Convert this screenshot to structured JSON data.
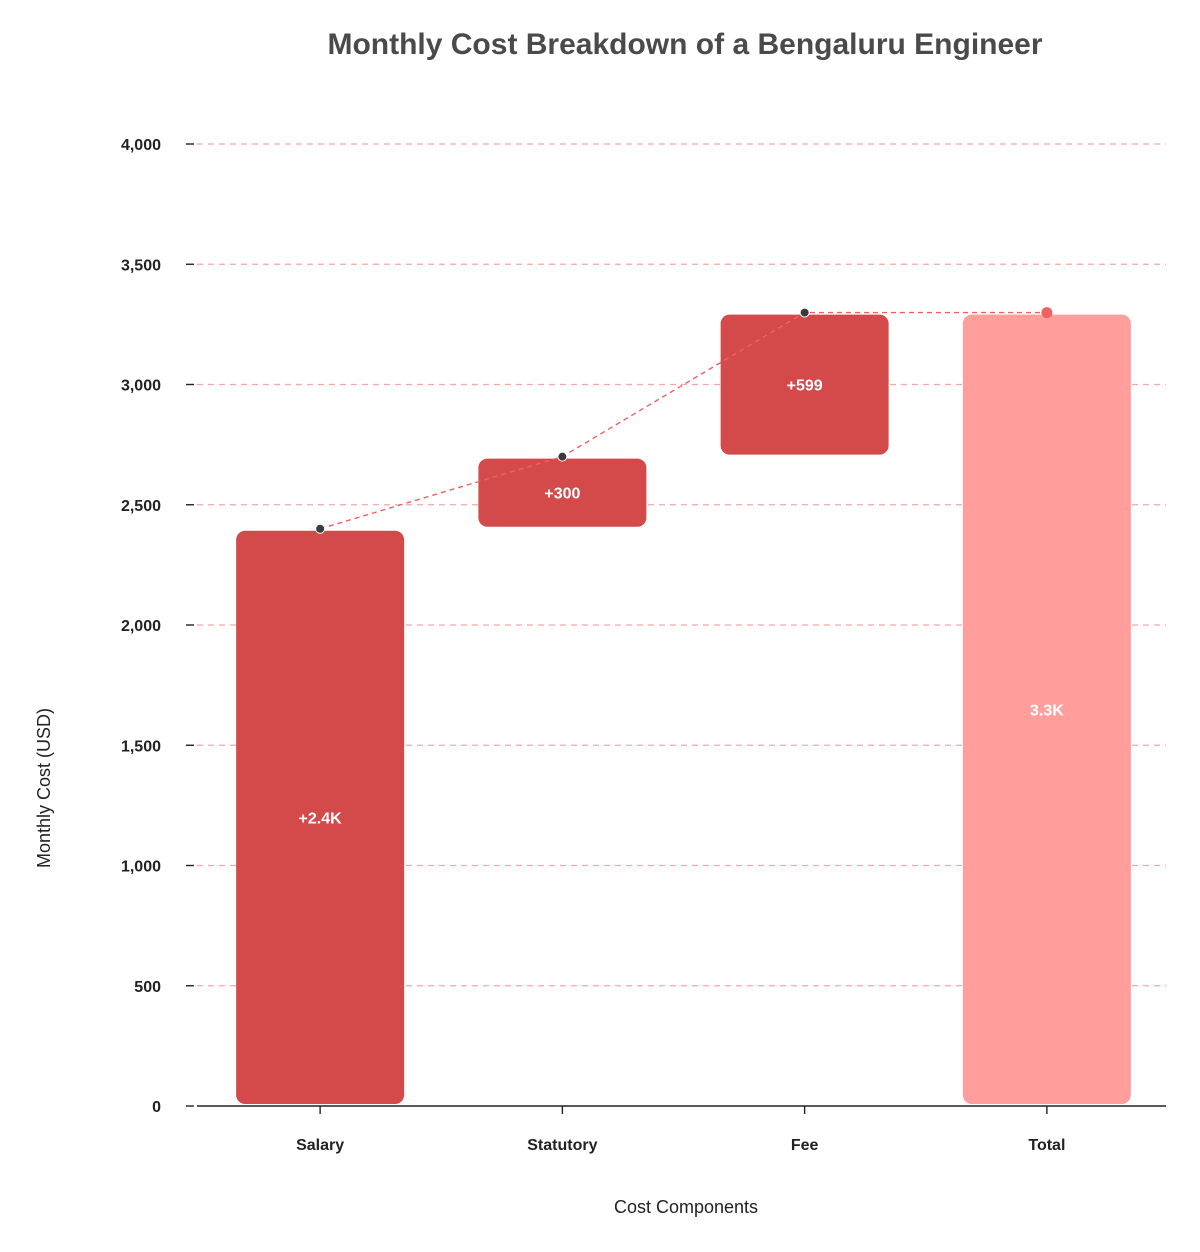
{
  "chart_data": {
    "type": "waterfall",
    "title": "Monthly Cost Breakdown of a Bengaluru Engineer",
    "xlabel": "Cost Components",
    "ylabel": "Monthly Cost (USD)",
    "categories": [
      "Salary",
      "Statutory",
      "Fee",
      "Total"
    ],
    "values": [
      2400,
      300,
      599,
      3299
    ],
    "data_labels": [
      "+2.4K",
      "+300",
      "+599",
      "3.3K"
    ],
    "is_total": [
      false,
      false,
      false,
      true
    ],
    "ylim": [
      0,
      4000
    ],
    "yticks": [
      0,
      500,
      1000,
      1500,
      2000,
      2500,
      3000,
      3500,
      4000
    ],
    "ytick_labels": [
      "0",
      "500",
      "1,000",
      "1,500",
      "2,000",
      "2,500",
      "3,000",
      "3,500",
      "4,000"
    ],
    "grid": true,
    "colors": {
      "increase": "#d44a4a",
      "total": "#ff9e9b",
      "connector": "#f06060",
      "grid": "#f5a8a8",
      "marker": "#3a3a3a",
      "total_marker": "#f06262"
    }
  }
}
